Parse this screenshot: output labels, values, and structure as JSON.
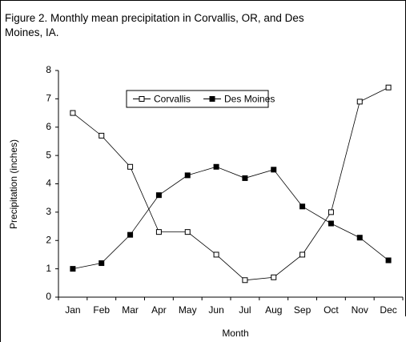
{
  "chart_data": {
    "type": "line",
    "title": "Figure 2. Monthly mean precipitation in Corvallis, OR, and Des Moines, IA.",
    "x_label": "Month",
    "y_label": "Precipitation (inches)",
    "categories": [
      "Jan",
      "Feb",
      "Mar",
      "Apr",
      "May",
      "Jun",
      "Jul",
      "Aug",
      "Sep",
      "Oct",
      "Nov",
      "Dec"
    ],
    "series": [
      {
        "name": "Corvallis",
        "color": "#000000",
        "marker": "open-square",
        "values": [
          6.5,
          5.7,
          4.6,
          2.3,
          2.3,
          1.5,
          0.6,
          0.7,
          1.5,
          3.0,
          6.9,
          7.4
        ]
      },
      {
        "name": "Des Moines",
        "color": "#000000",
        "marker": "filled-square",
        "values": [
          1.0,
          1.2,
          2.2,
          3.6,
          4.3,
          4.6,
          4.2,
          4.5,
          3.2,
          2.6,
          2.1,
          1.3
        ]
      }
    ],
    "ylim": [
      0,
      8
    ],
    "yticks": [
      0,
      1,
      2,
      3,
      4,
      5,
      6,
      7,
      8
    ],
    "grid": false,
    "legend_position": "top"
  }
}
